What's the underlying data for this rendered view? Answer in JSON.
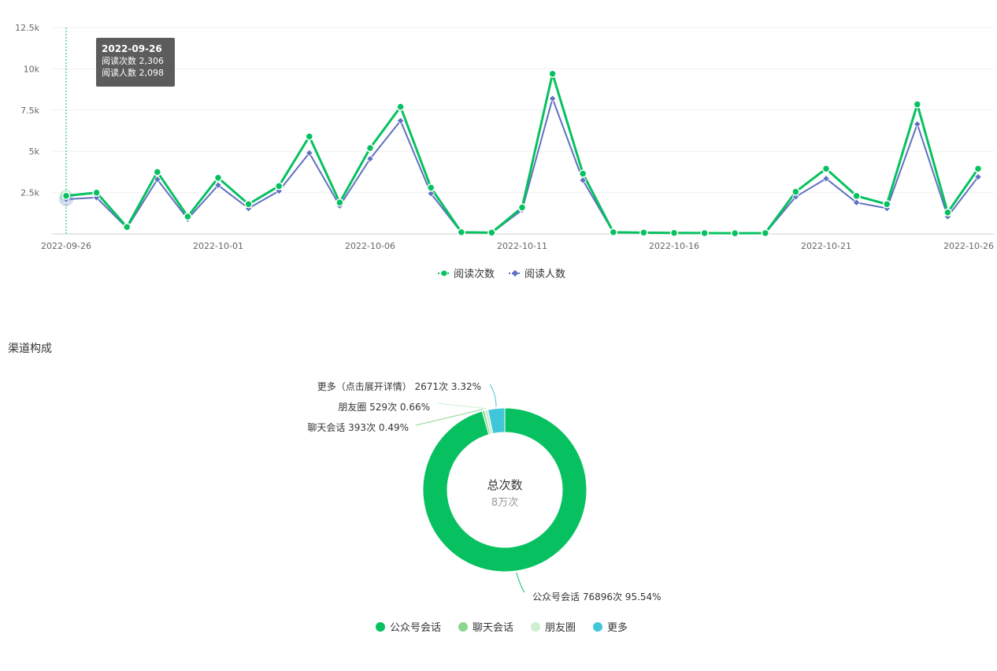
{
  "top_section": {
    "title_fragment": ""
  },
  "channel_section": {
    "title": "渠道构成"
  },
  "chart_data": [
    {
      "type": "line",
      "categories": [
        "2022-09-26",
        "2022-09-27",
        "2022-09-28",
        "2022-09-29",
        "2022-09-30",
        "2022-10-01",
        "2022-10-02",
        "2022-10-03",
        "2022-10-04",
        "2022-10-05",
        "2022-10-06",
        "2022-10-07",
        "2022-10-08",
        "2022-10-09",
        "2022-10-10",
        "2022-10-11",
        "2022-10-12",
        "2022-10-13",
        "2022-10-14",
        "2022-10-15",
        "2022-10-16",
        "2022-10-17",
        "2022-10-18",
        "2022-10-19",
        "2022-10-20",
        "2022-10-21",
        "2022-10-22",
        "2022-10-23",
        "2022-10-24",
        "2022-10-25",
        "2022-10-26"
      ],
      "x_tick_labels": [
        "2022-09-26",
        "2022-10-01",
        "2022-10-06",
        "2022-10-11",
        "2022-10-16",
        "2022-10-21",
        "2022-10-26"
      ],
      "y_tick_labels": [
        "2.5k",
        "5k",
        "7.5k",
        "10k",
        "12.5k"
      ],
      "ylim": [
        0,
        12500
      ],
      "series": [
        {
          "name": "阅读次数",
          "color": "#07c160",
          "values": [
            2306,
            2500,
            420,
            3750,
            1050,
            3400,
            1800,
            2900,
            5900,
            1900,
            5200,
            7700,
            2800,
            100,
            80,
            1600,
            9700,
            3650,
            100,
            80,
            60,
            50,
            40,
            50,
            2550,
            3950,
            2300,
            1800,
            7850,
            1300,
            3950
          ]
        },
        {
          "name": "阅读人数",
          "color": "#6170c1",
          "values": [
            2098,
            2200,
            360,
            3300,
            900,
            2950,
            1550,
            2600,
            4900,
            1700,
            4550,
            6850,
            2450,
            90,
            70,
            1450,
            8200,
            3250,
            90,
            70,
            55,
            45,
            35,
            45,
            2250,
            3350,
            1900,
            1550,
            6650,
            1050,
            3450
          ]
        }
      ],
      "tooltip": {
        "date": "2022-09-26",
        "line1": "阅读次数 2,306",
        "line2": "阅读人数 2,098"
      }
    },
    {
      "type": "pie",
      "variant": "donut",
      "center_title": "总次数",
      "center_value": "8万次",
      "slices": [
        {
          "name": "公众号会话",
          "label": "公众号会话 76896次 95.54%",
          "value": 76896,
          "percent": 95.54,
          "color": "#07c160"
        },
        {
          "name": "聊天会话",
          "label": "聊天会话 393次 0.49%",
          "value": 393,
          "percent": 0.49,
          "color": "#8ed68f"
        },
        {
          "name": "朋友圈",
          "label": "朋友圈 529次 0.66%",
          "value": 529,
          "percent": 0.66,
          "color": "#cdeecf"
        },
        {
          "name": "更多",
          "label": "更多（点击展开详情） 2671次 3.32%",
          "value": 2671,
          "percent": 3.32,
          "color": "#40c6d8"
        }
      ]
    }
  ]
}
